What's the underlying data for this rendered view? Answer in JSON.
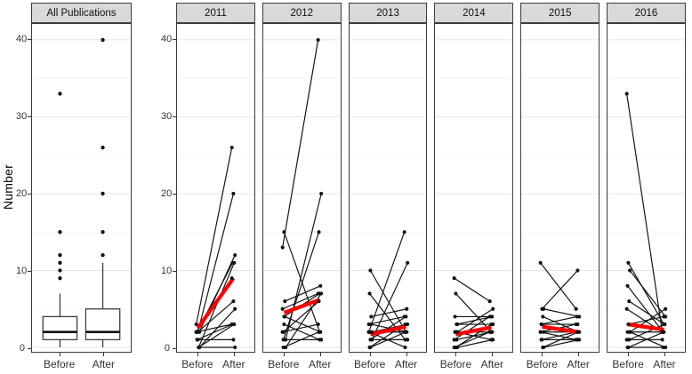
{
  "chart_data": {
    "type": "line",
    "description": "Paired before/after publication counts: overall boxplot panel plus six year facets with per-subject connecting lines and a red mean trend line",
    "ylabel": "Number",
    "x_categories": [
      "Before",
      "After"
    ],
    "y_ticks": [
      0,
      10,
      20,
      30,
      40
    ],
    "y_minor_gridlines": [
      5,
      15,
      25,
      35
    ],
    "ylim": [
      -1,
      42
    ],
    "grid": "on",
    "legend": "none",
    "boxplot_panel": {
      "strip_label": "All Publications",
      "series": [
        {
          "category": "Before",
          "q1": 1,
          "median": 2,
          "q3": 4,
          "whisker_low": 0,
          "whisker_high": 7,
          "outliers": [
            9,
            10,
            11,
            12,
            15,
            33
          ]
        },
        {
          "category": "After",
          "q1": 1,
          "median": 2,
          "q3": 5,
          "whisker_low": 0,
          "whisker_high": 11,
          "outliers": [
            12,
            15,
            20,
            26,
            40
          ]
        }
      ]
    },
    "facet_panels": [
      {
        "strip_label": "2011",
        "pairs": [
          [
            3,
            26
          ],
          [
            2,
            20
          ],
          [
            2,
            12
          ],
          [
            2,
            11
          ],
          [
            0,
            11
          ],
          [
            2,
            9
          ],
          [
            2,
            6
          ],
          [
            0,
            5
          ],
          [
            1,
            3
          ],
          [
            0,
            3
          ],
          [
            2,
            3
          ],
          [
            1,
            1
          ],
          [
            0,
            0
          ]
        ],
        "mean_line": {
          "before": 2.5,
          "after": 9.0
        }
      },
      {
        "strip_label": "2012",
        "pairs": [
          [
            13,
            40
          ],
          [
            15,
            2
          ],
          [
            1,
            20
          ],
          [
            1,
            15
          ],
          [
            6,
            8
          ],
          [
            5,
            7
          ],
          [
            4,
            7
          ],
          [
            0,
            7
          ],
          [
            2,
            6
          ],
          [
            4,
            2
          ],
          [
            2,
            3
          ],
          [
            3,
            1
          ],
          [
            1,
            1
          ],
          [
            0,
            2
          ]
        ],
        "mean_line": {
          "before": 4.5,
          "after": 6.2
        }
      },
      {
        "strip_label": "2013",
        "pairs": [
          [
            2,
            15
          ],
          [
            10,
            2
          ],
          [
            1,
            11
          ],
          [
            7,
            1
          ],
          [
            4,
            5
          ],
          [
            3,
            4
          ],
          [
            1,
            4
          ],
          [
            2,
            3
          ],
          [
            0,
            3
          ],
          [
            3,
            2
          ],
          [
            2,
            2
          ],
          [
            0,
            2
          ],
          [
            1,
            1
          ],
          [
            2,
            0
          ]
        ],
        "mean_line": {
          "before": 1.7,
          "after": 2.7
        }
      },
      {
        "strip_label": "2014",
        "pairs": [
          [
            9,
            6
          ],
          [
            7,
            2
          ],
          [
            2,
            5
          ],
          [
            4,
            4
          ],
          [
            3,
            4
          ],
          [
            1,
            4
          ],
          [
            0,
            3
          ],
          [
            3,
            3
          ],
          [
            2,
            2
          ],
          [
            1,
            2
          ],
          [
            0,
            2
          ],
          [
            2,
            1
          ],
          [
            0,
            1
          ]
        ],
        "mean_line": {
          "before": 1.7,
          "after": 2.6
        }
      },
      {
        "strip_label": "2015",
        "pairs": [
          [
            11,
            5
          ],
          [
            5,
            10
          ],
          [
            5,
            4
          ],
          [
            3,
            4
          ],
          [
            4,
            2
          ],
          [
            2,
            3
          ],
          [
            3,
            3
          ],
          [
            2,
            2
          ],
          [
            1,
            2
          ],
          [
            0,
            2
          ],
          [
            2,
            1
          ],
          [
            1,
            1
          ],
          [
            0,
            1
          ]
        ],
        "mean_line": {
          "before": 2.7,
          "after": 2.0
        }
      },
      {
        "strip_label": "2016",
        "pairs": [
          [
            33,
            2
          ],
          [
            11,
            3
          ],
          [
            10,
            4
          ],
          [
            8,
            2
          ],
          [
            6,
            3
          ],
          [
            5,
            2
          ],
          [
            3,
            4
          ],
          [
            2,
            5
          ],
          [
            2,
            2
          ],
          [
            1,
            3
          ],
          [
            1,
            1
          ],
          [
            0,
            2
          ],
          [
            2,
            0
          ],
          [
            0,
            0
          ]
        ],
        "mean_line": {
          "before": 3.0,
          "after": 2.3
        }
      }
    ],
    "colors": {
      "mean_line": "#ff0000",
      "points_and_lines": "#111111",
      "strip_fill": "#d9d9d9",
      "panel_border": "#3c3c3c",
      "major_gridline": "#e5e5e5",
      "minor_gridline": "#f2f2f2",
      "box_fill": "#ffffff"
    }
  }
}
